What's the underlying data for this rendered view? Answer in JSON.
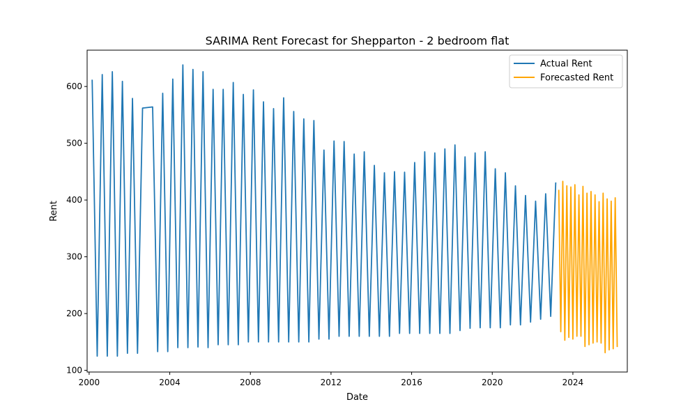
{
  "chart_data": {
    "type": "line",
    "title": "SARIMA Rent Forecast for Shepparton - 2 bedroom flat",
    "xlabel": "Date",
    "ylabel": "Rent",
    "xlim": [
      1999.9,
      2026.7
    ],
    "ylim": [
      97,
      664
    ],
    "x_ticks": [
      2000,
      2004,
      2008,
      2012,
      2016,
      2020,
      2024
    ],
    "x_tick_labels": [
      "2000",
      "2004",
      "2008",
      "2012",
      "2016",
      "2020",
      "2024"
    ],
    "y_ticks": [
      100,
      200,
      300,
      400,
      500,
      600
    ],
    "y_tick_labels": [
      "100",
      "200",
      "300",
      "400",
      "500",
      "600"
    ],
    "grid": false,
    "legend": "top-right",
    "series": [
      {
        "name": "Actual Rent",
        "color": "#1f77b4",
        "x": [
          2000.15,
          2000.4,
          2000.65,
          2000.9,
          2001.15,
          2001.4,
          2001.65,
          2001.9,
          2002.15,
          2002.4,
          2002.65,
          2003.15,
          2003.4,
          2003.65,
          2003.9,
          2004.15,
          2004.4,
          2004.65,
          2004.9,
          2005.15,
          2005.4,
          2005.65,
          2005.9,
          2006.15,
          2006.4,
          2006.65,
          2006.9,
          2007.15,
          2007.4,
          2007.65,
          2007.9,
          2008.15,
          2008.4,
          2008.65,
          2008.9,
          2009.15,
          2009.4,
          2009.65,
          2009.9,
          2010.15,
          2010.4,
          2010.65,
          2010.9,
          2011.15,
          2011.4,
          2011.65,
          2011.9,
          2012.15,
          2012.4,
          2012.65,
          2012.9,
          2013.15,
          2013.4,
          2013.65,
          2013.9,
          2014.15,
          2014.4,
          2014.65,
          2014.9,
          2015.15,
          2015.4,
          2015.65,
          2015.9,
          2016.15,
          2016.4,
          2016.65,
          2016.9,
          2017.15,
          2017.4,
          2017.65,
          2017.9,
          2018.15,
          2018.4,
          2018.65,
          2018.9,
          2019.15,
          2019.4,
          2019.65,
          2019.9,
          2020.15,
          2020.4,
          2020.65,
          2020.9,
          2021.15,
          2021.4,
          2021.65,
          2021.9,
          2022.15,
          2022.4,
          2022.65,
          2022.9,
          2023.15
        ],
        "values": [
          612,
          125,
          621,
          125,
          626,
          125,
          609,
          130,
          579,
          130,
          562,
          564,
          133,
          588,
          133,
          613,
          140,
          638,
          140,
          630,
          141,
          626,
          140,
          595,
          145,
          595,
          145,
          607,
          145,
          586,
          150,
          594,
          150,
          573,
          150,
          561,
          150,
          580,
          150,
          556,
          150,
          543,
          150,
          540,
          155,
          488,
          155,
          504,
          160,
          503,
          160,
          481,
          160,
          485,
          160,
          461,
          160,
          448,
          160,
          450,
          165,
          449,
          165,
          466,
          165,
          485,
          165,
          483,
          165,
          490,
          165,
          497,
          170,
          476,
          174,
          483,
          175,
          485,
          175,
          455,
          175,
          448,
          180,
          425,
          180,
          408,
          185,
          398,
          190,
          411,
          195,
          431
        ]
      },
      {
        "name": "Forecasted Rent",
        "color": "#ffa500",
        "x": [
          2023.3,
          2023.4,
          2023.5,
          2023.6,
          2023.7,
          2023.8,
          2023.9,
          2024.0,
          2024.1,
          2024.2,
          2024.3,
          2024.4,
          2024.5,
          2024.6,
          2024.7,
          2024.8,
          2024.9,
          2025.0,
          2025.1,
          2025.2,
          2025.3,
          2025.4,
          2025.5,
          2025.6,
          2025.7,
          2025.8,
          2025.9,
          2026.0,
          2026.1,
          2026.2
        ],
        "values": [
          418,
          168,
          433,
          153,
          425,
          158,
          423,
          155,
          427,
          160,
          409,
          160,
          424,
          142,
          412,
          145,
          415,
          148,
          409,
          150,
          397,
          148,
          412,
          131,
          402,
          136,
          398,
          138,
          404,
          141
        ]
      }
    ]
  }
}
